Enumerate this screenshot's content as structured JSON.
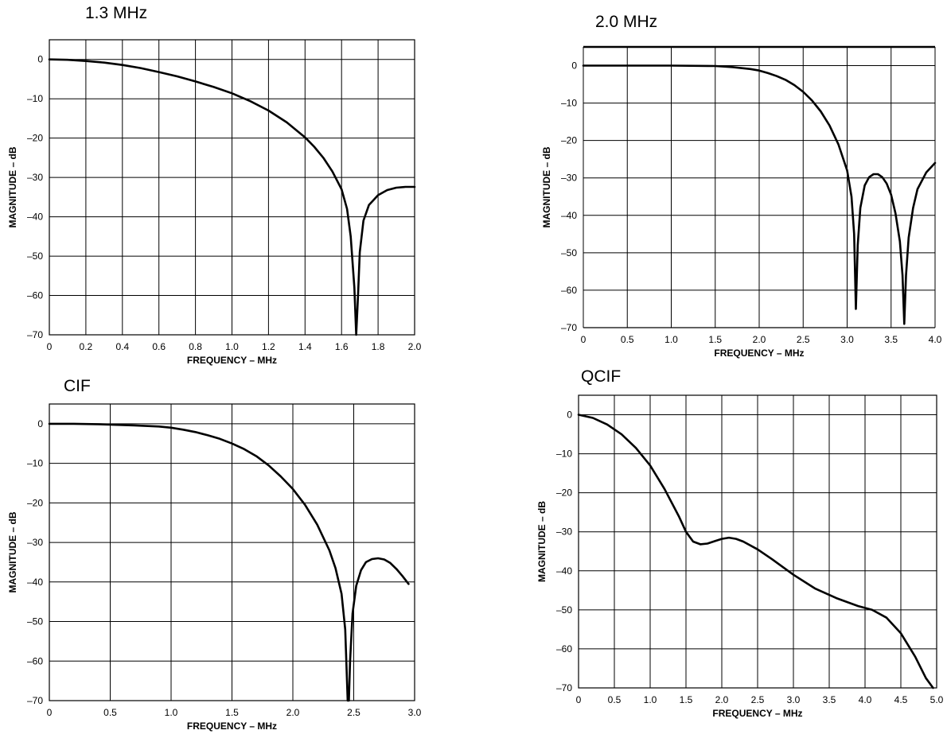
{
  "chart_data": [
    {
      "type": "line",
      "title": "1.3 MHz",
      "xlabel": "FREQUENCY – MHz",
      "ylabel": "MAGNITUDE – dB",
      "xlim": [
        0,
        2.0
      ],
      "ylim": [
        -70,
        5
      ],
      "xticks": [
        "0",
        "0.2",
        "0.4",
        "0.6",
        "0.8",
        "1.0",
        "1.2",
        "1.4",
        "1.6",
        "1.8",
        "2.0"
      ],
      "yticks": [
        "0",
        "–10",
        "–20",
        "–30",
        "–40",
        "–50",
        "–60",
        "–70"
      ],
      "grid": true,
      "series": [
        {
          "x": [
            0,
            0.1,
            0.2,
            0.3,
            0.4,
            0.5,
            0.6,
            0.7,
            0.8,
            0.9,
            1.0,
            1.1,
            1.2,
            1.3,
            1.4,
            1.45,
            1.5,
            1.55,
            1.6,
            1.63,
            1.65,
            1.67,
            1.68,
            1.69,
            1.7,
            1.72,
            1.75,
            1.8,
            1.85,
            1.9,
            1.95,
            2.0
          ],
          "y": [
            0,
            -0.1,
            -0.4,
            -0.8,
            -1.4,
            -2.2,
            -3.2,
            -4.3,
            -5.6,
            -7.0,
            -8.6,
            -10.6,
            -13.0,
            -16.0,
            -19.8,
            -22.2,
            -25.0,
            -28.5,
            -33.0,
            -38.0,
            -45.0,
            -58.0,
            -70,
            -60.0,
            -49.0,
            -41.0,
            -37.0,
            -34.5,
            -33.2,
            -32.6,
            -32.4,
            -32.4
          ]
        }
      ]
    },
    {
      "type": "line",
      "title": "2.0 MHz",
      "xlabel": "FREQUENCY – MHz",
      "ylabel": "MAGNITUDE – dB",
      "xlim": [
        0,
        4.0
      ],
      "ylim": [
        -70,
        5
      ],
      "xticks": [
        "0",
        "0.5",
        "1.0",
        "1.5",
        "2.0",
        "2.5",
        "3.0",
        "3.5",
        "4.0"
      ],
      "yticks": [
        "0",
        "–10",
        "–20",
        "–30",
        "–40",
        "–50",
        "–60",
        "–70"
      ],
      "grid": true,
      "series": [
        {
          "x": [
            0,
            0.5,
            1.0,
            1.5,
            1.7,
            1.9,
            2.0,
            2.1,
            2.2,
            2.3,
            2.4,
            2.5,
            2.6,
            2.7,
            2.8,
            2.9,
            3.0,
            3.05,
            3.08,
            3.1,
            3.12,
            3.15,
            3.2,
            3.25,
            3.3,
            3.35,
            3.4,
            3.45,
            3.5,
            3.55,
            3.6,
            3.63,
            3.65,
            3.67,
            3.7,
            3.75,
            3.8,
            3.9,
            4.0
          ],
          "y": [
            0,
            0,
            0,
            -0.1,
            -0.4,
            -0.9,
            -1.3,
            -2.0,
            -2.8,
            -3.8,
            -5.2,
            -7.0,
            -9.3,
            -12.2,
            -16.0,
            -21.0,
            -28.0,
            -35.0,
            -45.0,
            -65.0,
            -48.0,
            -38.0,
            -32.0,
            -29.8,
            -29.0,
            -29.0,
            -29.8,
            -31.5,
            -34.5,
            -39.5,
            -47.0,
            -56.0,
            -69.0,
            -56.0,
            -46.0,
            -38.0,
            -33.0,
            -28.5,
            -26.0
          ]
        }
      ]
    },
    {
      "type": "line",
      "title": "CIF",
      "xlabel": "FREQUENCY – MHz",
      "ylabel": "MAGNITUDE – dB",
      "xlim": [
        0,
        3.0
      ],
      "ylim": [
        -70,
        5
      ],
      "xticks": [
        "0",
        "0.5",
        "1.0",
        "1.5",
        "2.0",
        "2.5",
        "3.0"
      ],
      "yticks": [
        "0",
        "–10",
        "–20",
        "–30",
        "–40",
        "–50",
        "–60",
        "–70"
      ],
      "grid": true,
      "series": [
        {
          "x": [
            0,
            0.2,
            0.4,
            0.5,
            0.7,
            0.9,
            1.0,
            1.1,
            1.2,
            1.3,
            1.4,
            1.5,
            1.6,
            1.7,
            1.8,
            1.9,
            2.0,
            2.1,
            2.2,
            2.3,
            2.35,
            2.4,
            2.43,
            2.45,
            2.46,
            2.47,
            2.49,
            2.52,
            2.56,
            2.6,
            2.65,
            2.7,
            2.75,
            2.8,
            2.85,
            2.9,
            2.95
          ],
          "y": [
            0,
            0,
            -0.1,
            -0.2,
            -0.4,
            -0.7,
            -1.0,
            -1.5,
            -2.1,
            -2.9,
            -3.8,
            -5.0,
            -6.4,
            -8.2,
            -10.5,
            -13.3,
            -16.5,
            -20.5,
            -25.5,
            -32.0,
            -36.5,
            -43.0,
            -52.0,
            -70.0,
            -70.0,
            -60.0,
            -48.0,
            -41.0,
            -37.0,
            -35.0,
            -34.2,
            -34.0,
            -34.3,
            -35.2,
            -36.7,
            -38.5,
            -40.5
          ]
        }
      ]
    },
    {
      "type": "line",
      "title": "QCIF",
      "xlabel": "FREQUENCY – MHz",
      "ylabel": "MAGNITUDE – dB",
      "xlim": [
        0,
        5.0
      ],
      "ylim": [
        -70,
        5
      ],
      "xticks": [
        "0",
        "0.5",
        "1.0",
        "1.5",
        "2.0",
        "2.5",
        "3.0",
        "3.5",
        "4.0",
        "4.5",
        "5.0"
      ],
      "yticks": [
        "0",
        "–10",
        "–20",
        "–30",
        "–40",
        "–50",
        "–60",
        "–70"
      ],
      "grid": true,
      "series": [
        {
          "x": [
            0,
            0.2,
            0.4,
            0.6,
            0.8,
            1.0,
            1.2,
            1.4,
            1.5,
            1.6,
            1.7,
            1.8,
            1.9,
            2.0,
            2.1,
            2.2,
            2.3,
            2.5,
            2.7,
            3.0,
            3.3,
            3.6,
            3.9,
            4.1,
            4.3,
            4.5,
            4.7,
            4.85,
            4.95
          ],
          "y": [
            0,
            -0.8,
            -2.5,
            -5.0,
            -8.5,
            -13.0,
            -19.0,
            -26.0,
            -30.0,
            -32.5,
            -33.2,
            -33.0,
            -32.4,
            -31.8,
            -31.5,
            -31.8,
            -32.5,
            -34.5,
            -37.0,
            -41.0,
            -44.5,
            -47.0,
            -49.0,
            -50.0,
            -52.0,
            -56.0,
            -62.0,
            -67.5,
            -70.0
          ]
        }
      ]
    }
  ]
}
